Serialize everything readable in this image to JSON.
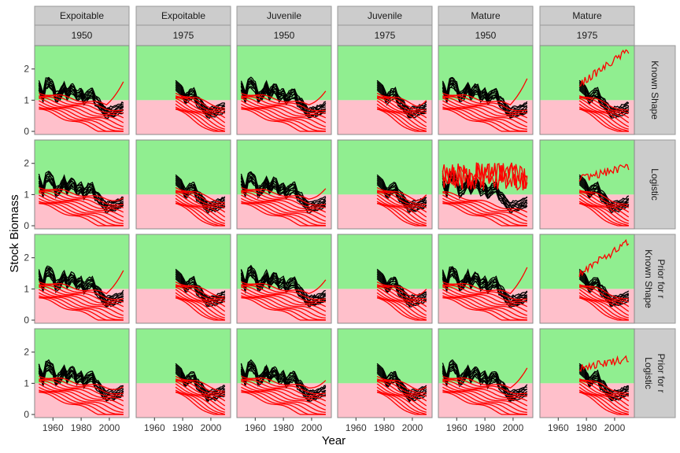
{
  "chart_data": {
    "type": "line",
    "title": "",
    "xlabel": "Year",
    "ylabel": "Stock Biomass",
    "x_ticks": [
      1960,
      1980,
      2000
    ],
    "y_ticks": [
      0,
      1,
      2
    ],
    "xlim": [
      1947,
      2014
    ],
    "ylim": [
      -0.1,
      2.75
    ],
    "reference_line": 1,
    "colors": {
      "above_reference": "#90EE90",
      "below_reference": "#FFC0CB",
      "black_series": "#000000",
      "red_series": "#FF0000",
      "strip_background": "#CCCCCC",
      "strip_border": "#999999"
    },
    "columns": [
      {
        "strip_top": "Expoitable",
        "strip_bottom": "1950",
        "start_year": 1950
      },
      {
        "strip_top": "Expoitable",
        "strip_bottom": "1975",
        "start_year": 1975
      },
      {
        "strip_top": "Juvenile",
        "strip_bottom": "1950",
        "start_year": 1950
      },
      {
        "strip_top": "Juvenile",
        "strip_bottom": "1975",
        "start_year": 1975
      },
      {
        "strip_top": "Mature",
        "strip_bottom": "1950",
        "start_year": 1950
      },
      {
        "strip_top": "Mature",
        "strip_bottom": "1975",
        "start_year": 1975
      }
    ],
    "rows": [
      {
        "labels": [
          "Known Shape"
        ]
      },
      {
        "labels": [
          "Logistic"
        ]
      },
      {
        "labels": [
          "Known Shape",
          "Prior for r"
        ]
      },
      {
        "labels": [
          "Logistic",
          "Prior for r"
        ]
      }
    ],
    "black_series_template": {
      "x": [
        1950,
        1953,
        1955,
        1957,
        1960,
        1962,
        1965,
        1968,
        1970,
        1973,
        1975,
        1977,
        1980,
        1982,
        1985,
        1988,
        1990,
        1993,
        1995,
        1998,
        2000,
        2003,
        2005,
        2008,
        2010
      ],
      "y": [
        1.5,
        1.1,
        1.55,
        1.6,
        1.45,
        1.1,
        1.2,
        1.45,
        1.2,
        1.4,
        1.35,
        1.15,
        1.25,
        1.05,
        1.2,
        1.25,
        1.0,
        0.9,
        0.75,
        0.6,
        0.65,
        0.65,
        0.7,
        0.75,
        0.8
      ]
    },
    "black_series_count": 8,
    "red_series_count": 10,
    "red_end_high_values": [
      [
        1.6,
        0,
        1.3,
        1.0,
        1.7,
        2.6
      ],
      [
        0.9,
        0,
        1.2,
        1.0,
        2.3,
        1.9
      ],
      [
        1.6,
        0,
        1.3,
        1.0,
        1.7,
        2.5
      ],
      [
        0.9,
        0,
        1.1,
        0.9,
        1.5,
        1.8
      ]
    ]
  }
}
